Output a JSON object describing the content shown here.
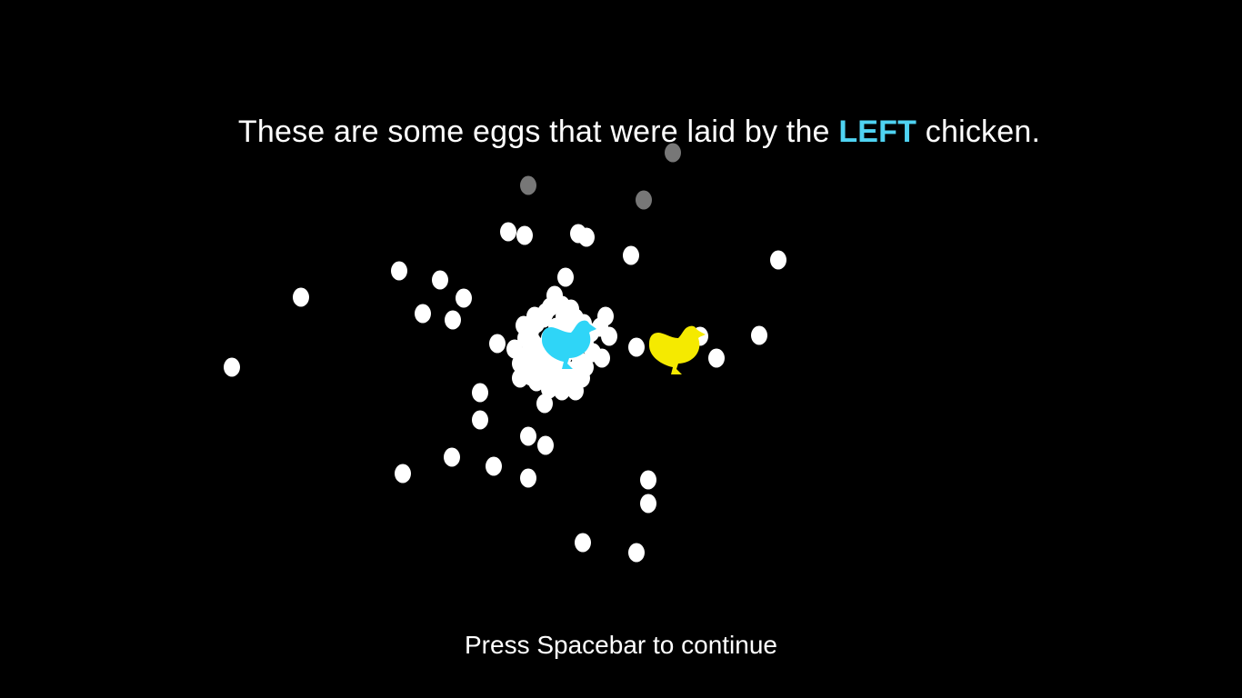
{
  "instruction": {
    "prefix": "These are some eggs that were laid by the ",
    "highlight": "LEFT",
    "suffix": " chicken.",
    "highlight_color": "#4fd3f2"
  },
  "continue_prompt": "Press Spacebar to continue",
  "colors": {
    "background": "#000000",
    "egg": "#ffffff",
    "egg_faded": "#777777",
    "left_chicken": "#2fd5f7",
    "right_chicken": "#f5ea00"
  },
  "chickens": [
    {
      "side": "left",
      "icon": "chicken-icon"
    },
    {
      "side": "right",
      "icon": "chicken-icon"
    }
  ],
  "egg_counts": {
    "white": 90,
    "faded": 3
  }
}
